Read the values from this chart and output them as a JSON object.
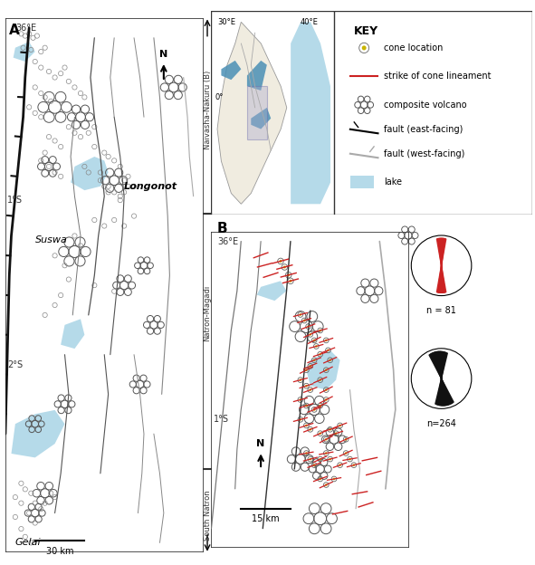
{
  "figure_width": 5.91,
  "figure_height": 6.24,
  "background_color": "#ffffff",
  "panel_A": {
    "label": "A",
    "lat_label_36E": "36°E",
    "lat_label_1S": "1°S",
    "lat_label_2S": "2°S",
    "scale_bar_label": "30 km",
    "longonot_label": "Longonot",
    "suswa_label": "Suswa",
    "gelai_label": "Gelai"
  },
  "panel_B": {
    "label": "B",
    "label_36E": "36°E",
    "scale_bar_label": "15 km",
    "lat_label_1S": "1°S",
    "n81_label": "n = 81",
    "n264_label": "n=264"
  },
  "inset": {
    "lat_label_0": "0°",
    "lon_label_30E": "30°E",
    "lon_label_40E": "40°E"
  },
  "key": {
    "title": "KEY",
    "items": [
      "cone location",
      "strike of cone lineament",
      "composite volcano",
      "fault (east-facing)",
      "fault (west-facing)",
      "lake"
    ]
  },
  "region_labels": {
    "naivasha_nakuru": "Naivasha-Nakuru (B)",
    "natron_magadi": "Natron-Magadi",
    "south_natron": "South Natron"
  },
  "colors": {
    "lake_fill": "#a8d4e6",
    "lake_fill_dark": "#4a8fb5",
    "fault_east": "#1a1a1a",
    "fault_west": "#aaaaaa",
    "cone_circle": "#888888",
    "cone_yellow": "#c8b400",
    "lineament_red": "#cc2222",
    "volcano_outline": "#555555",
    "rose_red": "#cc2222",
    "rose_black": "#111111",
    "tick_line": "#333333",
    "border": "#333333",
    "inset_rect": "#9999bb",
    "inset_lake_dark": "#4a8fb5",
    "inset_lake_light": "#a8d4e6"
  }
}
